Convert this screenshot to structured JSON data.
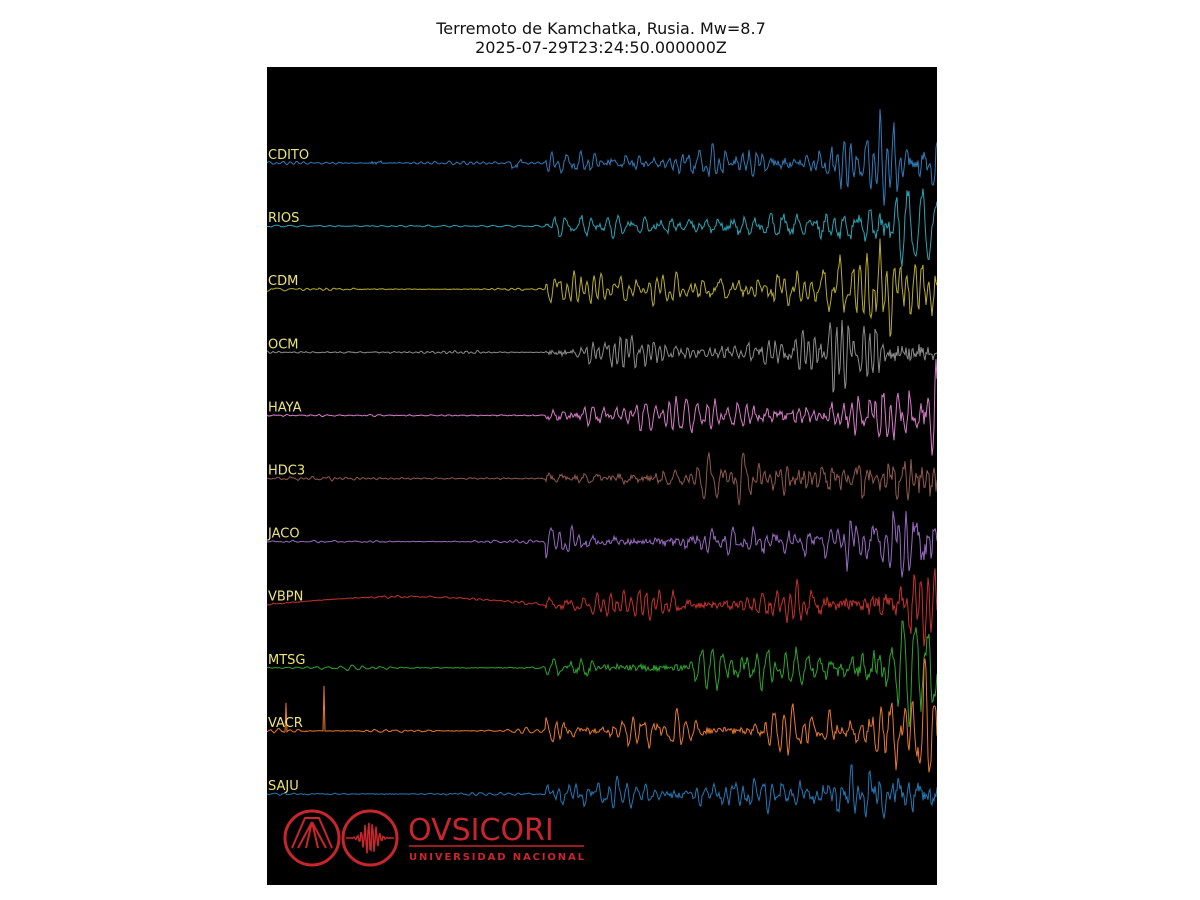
{
  "header": {
    "title": "Terremoto de Kamchatka, Rusia. Mw=8.7",
    "subtitle": "2025-07-29T23:24:50.000000Z"
  },
  "stations": [
    {
      "name": "CDITO",
      "color": "#2f7bb8"
    },
    {
      "name": "RIOS",
      "color": "#2aa3b6"
    },
    {
      "name": "CDM",
      "color": "#b8ac2c"
    },
    {
      "name": "OCM",
      "color": "#8c8c8c"
    },
    {
      "name": "HAYA",
      "color": "#d77cc6"
    },
    {
      "name": "HDC3",
      "color": "#8f594e"
    },
    {
      "name": "JACO",
      "color": "#9669c0"
    },
    {
      "name": "VBPN",
      "color": "#c4322c"
    },
    {
      "name": "MTSG",
      "color": "#2ea42e"
    },
    {
      "name": "VACR",
      "color": "#ea7a2c"
    },
    {
      "name": "SAJU",
      "color": "#2378b6"
    }
  ],
  "logo": {
    "name": "OVSICORI",
    "subtitle": "UNIVERSIDAD NACIONAL",
    "color": "#c8262c"
  },
  "label_color": "#ece47a"
}
